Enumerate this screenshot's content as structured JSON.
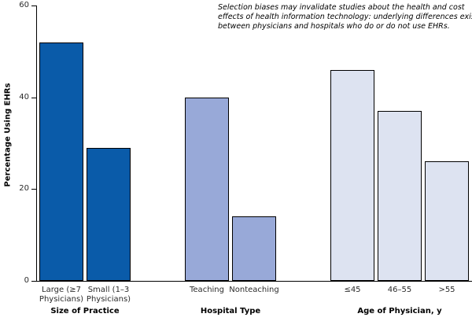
{
  "chart_data": {
    "type": "bar",
    "title": "",
    "xlabel": "",
    "ylabel": "Percentage Using EHRs",
    "ylim": [
      0,
      60
    ],
    "yticks": [
      0,
      20,
      40,
      60
    ],
    "grid": false,
    "legend": "none",
    "annotation_lines": [
      "Selection biases may invalidate studies about the health and cost",
      "effects of health information technology: underlying differences exist",
      "between physicians and hospitals who do or do not use EHRs."
    ],
    "groups": [
      {
        "label": "Size of Practice",
        "bar_color": "#0A5BA9",
        "bars": [
          {
            "label_lines": [
              "Large (≥7",
              "Physicians)"
            ],
            "value": 52
          },
          {
            "label_lines": [
              "Small (1–3",
              "Physicians)"
            ],
            "value": 29
          }
        ]
      },
      {
        "label": "Hospital Type",
        "bar_color": "#98A9D8",
        "bars": [
          {
            "label_lines": [
              "Teaching"
            ],
            "value": 40
          },
          {
            "label_lines": [
              "Nonteaching"
            ],
            "value": 14
          }
        ]
      },
      {
        "label": "Age of Physician, y",
        "bar_color": "#DDE3F1",
        "bars": [
          {
            "label_lines": [
              "≤45"
            ],
            "value": 46
          },
          {
            "label_lines": [
              "46–55"
            ],
            "value": 37
          },
          {
            "label_lines": [
              ">55"
            ],
            "value": 26
          }
        ]
      }
    ],
    "colors": {
      "axis": "#000000",
      "bar_border": "#000000",
      "tick_label_text": "#2b2b2b",
      "annotation_text": "#000000"
    }
  }
}
